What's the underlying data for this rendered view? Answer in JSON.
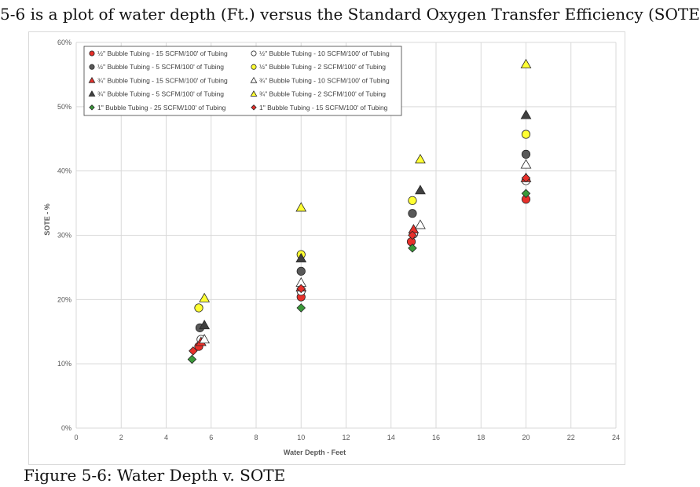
{
  "heading": "5-6 is a plot of water depth (Ft.) versus the Standard Oxygen Transfer Efficiency (SOTE",
  "footer_partial": "Figure 5-6: Water Depth v. SOTE",
  "chart_data": {
    "type": "scatter",
    "title": "",
    "xlabel": "Water Depth - Feet",
    "ylabel": "SOTE - %",
    "xlim": [
      0,
      24
    ],
    "ylim": [
      0,
      60
    ],
    "x_ticks": [
      0,
      2,
      4,
      6,
      8,
      10,
      12,
      14,
      16,
      18,
      20,
      22,
      24
    ],
    "y_ticks": [
      0,
      10,
      20,
      30,
      40,
      50,
      60
    ],
    "y_tick_labels": [
      "0%",
      "10%",
      "20%",
      "30%",
      "40%",
      "50%",
      "60%"
    ],
    "grid": true,
    "legend_position": "top-left",
    "series": [
      {
        "name": "½\" Bubble Tubing - 15 SCFM/100' of Tubing",
        "marker": "circle",
        "fill": "#e8302a",
        "points": [
          [
            5.45,
            12.7
          ],
          [
            10,
            20.4
          ],
          [
            14.9,
            29.0
          ],
          [
            20,
            35.6
          ]
        ]
      },
      {
        "name": "½\" Bubble Tubing - 10 SCFM/100' of Tubing",
        "marker": "circle",
        "fill": "#ffffff",
        "points": [
          [
            5.55,
            13.8
          ],
          [
            10,
            21.3
          ],
          [
            15,
            30.2
          ],
          [
            20,
            38.5
          ]
        ]
      },
      {
        "name": "½\" Bubble Tubing - 5 SCFM/100' of Tubing",
        "marker": "circle",
        "fill": "#595959",
        "points": [
          [
            5.5,
            15.6
          ],
          [
            10,
            24.4
          ],
          [
            14.95,
            33.4
          ],
          [
            20,
            42.6
          ]
        ]
      },
      {
        "name": "½\" Bubble Tubing - 2 SCFM/100' of Tubing",
        "marker": "circle",
        "fill": "#ffff33",
        "points": [
          [
            5.45,
            18.7
          ],
          [
            10,
            27.0
          ],
          [
            14.95,
            35.4
          ],
          [
            20,
            45.7
          ]
        ]
      },
      {
        "name": "¾\" Bubble Tubing - 15 SCFM/100' of Tubing",
        "marker": "triangle",
        "fill": "#e8302a",
        "points": [
          [
            5.55,
            13.4
          ],
          [
            10,
            21.9
          ],
          [
            15,
            30.9
          ],
          [
            20,
            38.9
          ]
        ]
      },
      {
        "name": "¾\" Bubble Tubing - 10 SCFM/100' of Tubing",
        "marker": "triangle",
        "fill": "#ffffff",
        "points": [
          [
            5.7,
            13.8
          ],
          [
            10,
            22.6
          ],
          [
            15.3,
            31.6
          ],
          [
            20,
            41.0
          ]
        ]
      },
      {
        "name": "¾\" Bubble Tubing - 5 SCFM/100' of Tubing",
        "marker": "triangle",
        "fill": "#404040",
        "points": [
          [
            5.7,
            16.0
          ],
          [
            10,
            26.4
          ],
          [
            15.3,
            37.0
          ],
          [
            20,
            48.7
          ]
        ]
      },
      {
        "name": "¾\" Bubble Tubing - 2 SCFM/100' of Tubing",
        "marker": "triangle",
        "fill": "#ffff33",
        "points": [
          [
            5.7,
            20.2
          ],
          [
            10,
            34.3
          ],
          [
            15.3,
            41.8
          ],
          [
            20,
            56.6
          ]
        ]
      },
      {
        "name": "1\" Bubble Tubing - 25 SCFM/100' of Tubing",
        "marker": "diamond",
        "fill": "#3a9a3a",
        "points": [
          [
            5.15,
            10.7
          ],
          [
            10,
            18.7
          ],
          [
            14.95,
            28.0
          ],
          [
            20,
            36.5
          ]
        ]
      },
      {
        "name": "1\" Bubble Tubing - 15 SCFM/100' of Tubing",
        "marker": "diamond",
        "fill": "#e8302a",
        "points": [
          [
            5.2,
            12.0
          ],
          [
            10,
            21.7
          ],
          [
            14.95,
            30.0
          ],
          [
            20,
            38.9
          ]
        ]
      }
    ]
  }
}
